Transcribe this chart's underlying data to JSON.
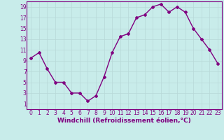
{
  "x": [
    0,
    1,
    2,
    3,
    4,
    5,
    6,
    7,
    8,
    9,
    10,
    11,
    12,
    13,
    14,
    15,
    16,
    17,
    18,
    19,
    20,
    21,
    22,
    23
  ],
  "y": [
    9.5,
    10.5,
    7.5,
    5.0,
    5.0,
    3.0,
    3.0,
    1.5,
    2.5,
    6.0,
    10.5,
    13.5,
    14.0,
    17.0,
    17.5,
    19.0,
    19.5,
    18.0,
    19.0,
    18.0,
    15.0,
    13.0,
    11.0,
    8.5
  ],
  "line_color": "#800080",
  "marker": "D",
  "marker_size": 2,
  "xlabel": "Windchill (Refroidissement éolien,°C)",
  "ylabel": "",
  "xlim": [
    -0.5,
    23.5
  ],
  "ylim": [
    0,
    20
  ],
  "yticks": [
    1,
    3,
    5,
    7,
    9,
    11,
    13,
    15,
    17,
    19
  ],
  "xticks": [
    0,
    1,
    2,
    3,
    4,
    5,
    6,
    7,
    8,
    9,
    10,
    11,
    12,
    13,
    14,
    15,
    16,
    17,
    18,
    19,
    20,
    21,
    22,
    23
  ],
  "grid_color": "#b8d8d8",
  "background_color": "#c8ecea",
  "xlabel_fontsize": 6.5,
  "tick_fontsize": 5.5,
  "line_width": 1.0
}
